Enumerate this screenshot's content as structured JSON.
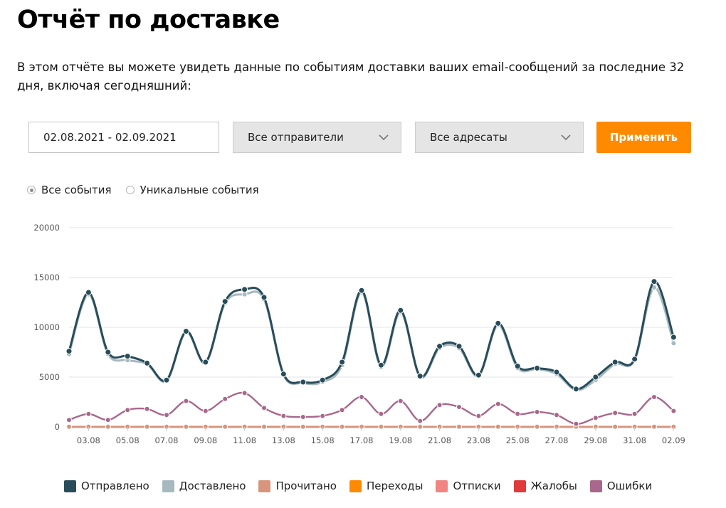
{
  "page": {
    "title": "Отчёт по доставке",
    "description": "В этом отчёте вы можете увидеть данные по событиям доставки ваших email-сообщений за последние 32 дня, включая сегодняшний:"
  },
  "filters": {
    "date_range": "02.08.2021 - 02.09.2021",
    "senders": "Все отправители",
    "recipients": "Все адресаты",
    "apply_label": "Применить"
  },
  "event_mode": {
    "all_label": "Все события",
    "unique_label": "Уникальные события",
    "selected": "all"
  },
  "chart_data": {
    "type": "line",
    "ylim": [
      0,
      20000
    ],
    "yticks": [
      0,
      5000,
      10000,
      15000,
      20000
    ],
    "x_labels": [
      "03.08",
      "05.08",
      "07.08",
      "09.08",
      "11.08",
      "13.08",
      "15.08",
      "17.08",
      "19.08",
      "21.08",
      "23.08",
      "25.08",
      "27.08",
      "29.08",
      "31.08",
      "02.09"
    ],
    "x": [
      "02.08",
      "03.08",
      "04.08",
      "05.08",
      "06.08",
      "07.08",
      "08.08",
      "09.08",
      "10.08",
      "11.08",
      "12.08",
      "13.08",
      "14.08",
      "15.08",
      "16.08",
      "17.08",
      "18.08",
      "19.08",
      "20.08",
      "21.08",
      "22.08",
      "23.08",
      "24.08",
      "25.08",
      "26.08",
      "27.08",
      "28.08",
      "29.08",
      "30.08",
      "31.08",
      "01.09",
      "02.09"
    ],
    "grid": true,
    "legend_position": "bottom",
    "series": [
      {
        "name": "Отправлено",
        "color": "#284c5a",
        "values": [
          7600,
          13500,
          7500,
          7100,
          6400,
          4700,
          9600,
          6500,
          12600,
          13800,
          13000,
          5300,
          4500,
          4700,
          6500,
          13700,
          6200,
          11700,
          5100,
          8100,
          8100,
          5200,
          10400,
          6100,
          5900,
          5500,
          3800,
          5000,
          6500,
          6800,
          14600,
          9000
        ]
      },
      {
        "name": "Доставлено",
        "color": "#a6b9bf",
        "values": [
          7300,
          13300,
          7300,
          6700,
          6300,
          4600,
          9500,
          6400,
          12400,
          13300,
          12800,
          5200,
          4400,
          4500,
          6200,
          13500,
          6000,
          11500,
          5000,
          7900,
          7900,
          5100,
          10200,
          5900,
          5800,
          5300,
          3700,
          4700,
          6300,
          6700,
          14000,
          8400
        ]
      },
      {
        "name": "Прочитано",
        "color": "#d8947c",
        "values": [
          20,
          20,
          20,
          20,
          20,
          20,
          20,
          20,
          20,
          20,
          20,
          20,
          20,
          20,
          20,
          20,
          20,
          20,
          20,
          20,
          20,
          20,
          20,
          20,
          20,
          20,
          20,
          20,
          20,
          20,
          20,
          20
        ]
      },
      {
        "name": "Переходы",
        "color": "#ff8a00",
        "values": [
          10,
          10,
          10,
          10,
          10,
          10,
          10,
          10,
          10,
          10,
          10,
          10,
          10,
          10,
          10,
          10,
          10,
          10,
          10,
          10,
          10,
          10,
          10,
          10,
          10,
          10,
          10,
          10,
          10,
          10,
          10,
          10
        ]
      },
      {
        "name": "Отписки",
        "color": "#f08582",
        "values": [
          5,
          5,
          5,
          5,
          5,
          5,
          5,
          5,
          5,
          5,
          5,
          5,
          5,
          5,
          5,
          5,
          5,
          5,
          5,
          5,
          5,
          5,
          5,
          5,
          5,
          5,
          5,
          5,
          5,
          5,
          5,
          5
        ]
      },
      {
        "name": "Жалобы",
        "color": "#e03a3a",
        "values": [
          0,
          0,
          0,
          0,
          0,
          0,
          0,
          0,
          0,
          0,
          0,
          0,
          0,
          0,
          0,
          0,
          0,
          0,
          0,
          0,
          0,
          0,
          0,
          0,
          0,
          0,
          0,
          0,
          0,
          0,
          0,
          0
        ]
      },
      {
        "name": "Ошибки",
        "color": "#a8678b",
        "values": [
          700,
          1300,
          700,
          1700,
          1800,
          1200,
          2600,
          1600,
          2800,
          3400,
          1900,
          1100,
          1000,
          1100,
          1700,
          3000,
          1300,
          2600,
          600,
          2200,
          2000,
          1100,
          2300,
          1300,
          1500,
          1200,
          300,
          900,
          1400,
          1300,
          3000,
          1600
        ]
      }
    ]
  }
}
